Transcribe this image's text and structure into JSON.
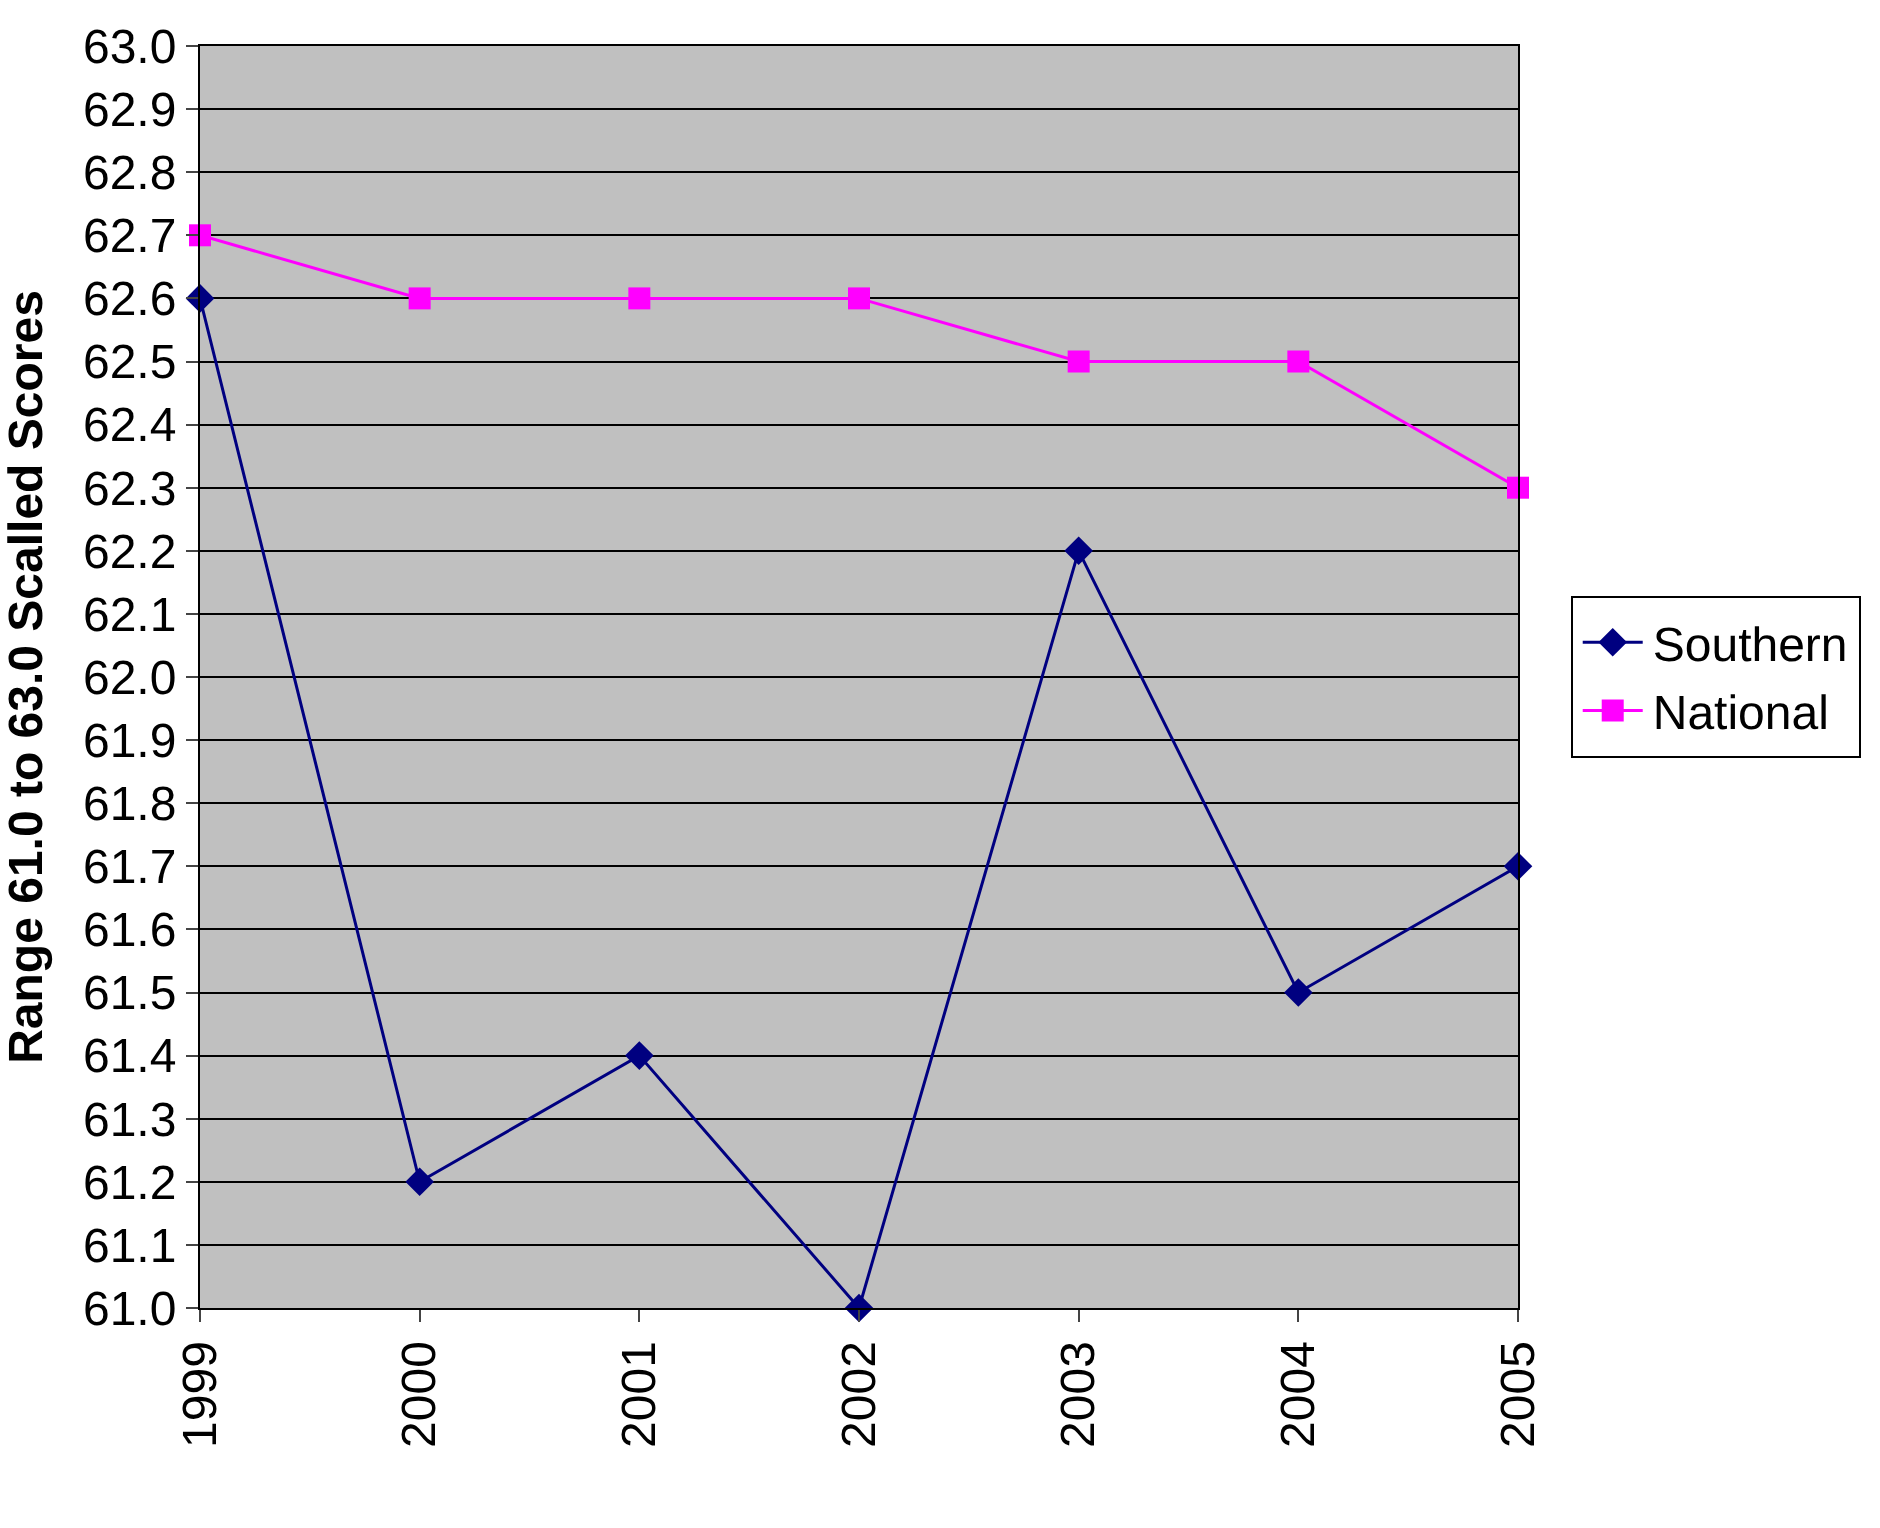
{
  "chart_data": {
    "type": "line",
    "ylabel": "Range 61.0 to 63.0 Scalled Scores",
    "categories": [
      "1999",
      "2000",
      "2001",
      "2002",
      "2003",
      "2004",
      "2005"
    ],
    "series": [
      {
        "name": "Southern",
        "color": "#000080",
        "marker": "diamond",
        "values": [
          62.6,
          61.2,
          61.4,
          61.0,
          62.2,
          61.5,
          61.7
        ]
      },
      {
        "name": "National",
        "color": "#ff00ff",
        "marker": "square",
        "values": [
          62.7,
          62.6,
          62.6,
          62.6,
          62.5,
          62.5,
          62.3
        ]
      }
    ],
    "ylim": [
      61.0,
      63.0
    ],
    "yticks": [
      {
        "value": 61.0,
        "label": "61.0"
      },
      {
        "value": 61.1,
        "label": "61.1"
      },
      {
        "value": 61.2,
        "label": "61.2"
      },
      {
        "value": 61.3,
        "label": "61.3"
      },
      {
        "value": 61.4,
        "label": "61.4"
      },
      {
        "value": 61.5,
        "label": "61.5"
      },
      {
        "value": 61.6,
        "label": "61.6"
      },
      {
        "value": 61.7,
        "label": "61.7"
      },
      {
        "value": 61.8,
        "label": "61.8"
      },
      {
        "value": 61.9,
        "label": "61.9"
      },
      {
        "value": 62.0,
        "label": "62.0"
      },
      {
        "value": 62.1,
        "label": "62.1"
      },
      {
        "value": 62.2,
        "label": "62.2"
      },
      {
        "value": 62.3,
        "label": "62.3"
      },
      {
        "value": 62.4,
        "label": "62.4"
      },
      {
        "value": 62.5,
        "label": "62.5"
      },
      {
        "value": 62.6,
        "label": "62.6"
      },
      {
        "value": 62.7,
        "label": "62.7"
      },
      {
        "value": 62.8,
        "label": "62.8"
      },
      {
        "value": 62.9,
        "label": "62.9"
      },
      {
        "value": 63.0,
        "label": "63.0"
      }
    ],
    "grid": "y",
    "legend": "right",
    "line_style": "solid"
  }
}
